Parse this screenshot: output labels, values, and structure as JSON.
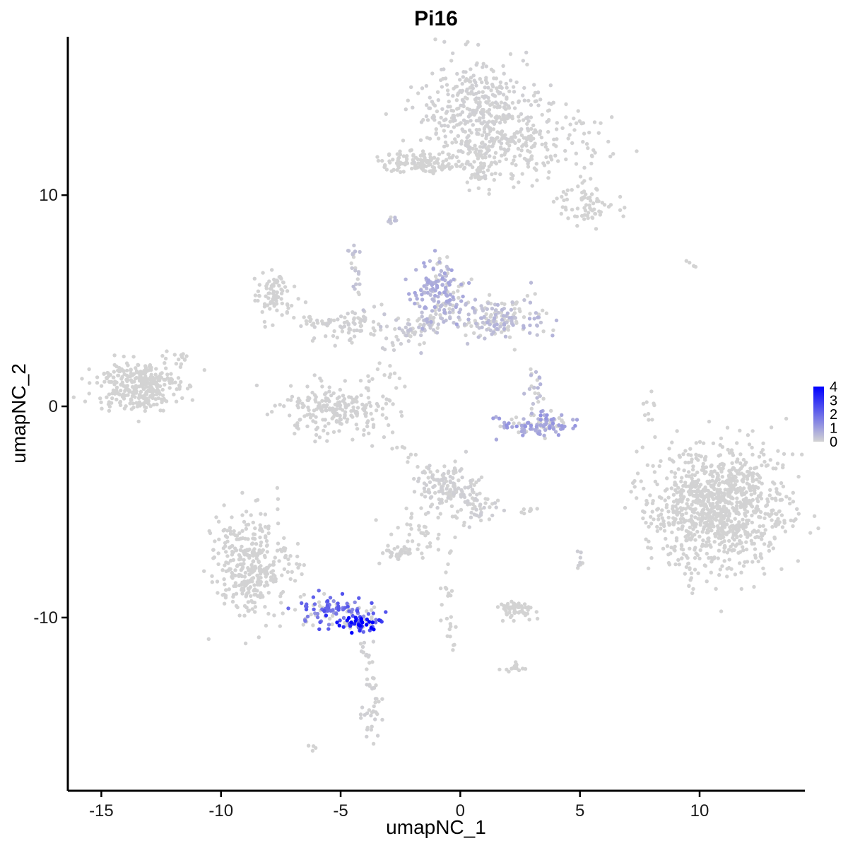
{
  "chart_data": {
    "type": "scatter",
    "title": "Pi16",
    "xlabel": "umapNC_1",
    "ylabel": "umapNC_2",
    "xlim": [
      -16.4,
      14.4
    ],
    "ylim": [
      -18.2,
      17.5
    ],
    "x_ticks": [
      -15,
      -10,
      -5,
      0,
      5,
      10
    ],
    "y_ticks": [
      -10,
      0,
      10
    ],
    "grid": false,
    "legend": {
      "placement": "right",
      "type": "colorbar",
      "min": 0,
      "max": 4,
      "ticks": [
        4,
        3,
        2,
        1,
        0
      ],
      "low_color": "#d3d3d3",
      "high_color": "#0000ff"
    },
    "point_color_low": "#d3d3d3",
    "point_color_high": "#0000ff",
    "clusters": [
      {
        "cx": 0.8,
        "cy": 14.0,
        "sx": 1.2,
        "sy": 1.2,
        "n": 380,
        "expr": 0.05
      },
      {
        "cx": 2.8,
        "cy": 12.3,
        "sx": 1.6,
        "sy": 0.8,
        "n": 200,
        "expr": 0.02
      },
      {
        "cx": 5.3,
        "cy": 9.6,
        "sx": 0.55,
        "sy": 0.45,
        "n": 70,
        "expr": 0
      },
      {
        "cx": -1.8,
        "cy": 11.6,
        "sx": 0.9,
        "sy": 0.3,
        "n": 110,
        "expr": 0
      },
      {
        "cx": 0.8,
        "cy": 11.4,
        "sx": 0.35,
        "sy": 0.7,
        "n": 40,
        "expr": 0
      },
      {
        "cx": -7.8,
        "cy": 5.3,
        "sx": 0.45,
        "sy": 0.55,
        "n": 80,
        "expr": 0.02
      },
      {
        "cx": -4.7,
        "cy": 3.8,
        "sx": 0.7,
        "sy": 0.35,
        "n": 70,
        "expr": 0.05
      },
      {
        "cx": -0.9,
        "cy": 5.4,
        "sx": 0.55,
        "sy": 0.7,
        "n": 150,
        "expr": 0.65
      },
      {
        "cx": 1.7,
        "cy": 4.2,
        "sx": 0.9,
        "sy": 0.5,
        "n": 160,
        "expr": 0.45
      },
      {
        "cx": -1.3,
        "cy": 3.7,
        "sx": 1.0,
        "sy": 0.4,
        "n": 60,
        "expr": 0.25
      },
      {
        "cx": -13.5,
        "cy": 1.0,
        "sx": 0.85,
        "sy": 0.6,
        "n": 320,
        "expr": 0
      },
      {
        "cx": -5.3,
        "cy": -0.2,
        "sx": 1.1,
        "sy": 0.6,
        "n": 220,
        "expr": 0.03
      },
      {
        "cx": 3.3,
        "cy": -0.9,
        "sx": 0.8,
        "sy": 0.25,
        "n": 110,
        "expr": 0.9
      },
      {
        "cx": 3.2,
        "cy": 0.6,
        "sx": 0.25,
        "sy": 0.6,
        "n": 25,
        "expr": 0.45
      },
      {
        "cx": 10.8,
        "cy": -4.8,
        "sx": 1.4,
        "sy": 1.45,
        "n": 1000,
        "expr": 0.01
      },
      {
        "cx": -0.6,
        "cy": -3.8,
        "sx": 0.6,
        "sy": 0.5,
        "n": 130,
        "expr": 0.06
      },
      {
        "cx": 0.8,
        "cy": -4.8,
        "sx": 0.4,
        "sy": 0.5,
        "n": 40,
        "expr": 0.1
      },
      {
        "cx": -1.7,
        "cy": -6.1,
        "sx": 0.6,
        "sy": 0.6,
        "n": 40,
        "expr": 0
      },
      {
        "cx": -8.7,
        "cy": -7.4,
        "sx": 0.8,
        "sy": 1.3,
        "n": 350,
        "expr": 0.02
      },
      {
        "cx": -5.3,
        "cy": -9.7,
        "sx": 0.85,
        "sy": 0.35,
        "n": 100,
        "expr": 1.8
      },
      {
        "cx": -4.3,
        "cy": -10.3,
        "sx": 0.45,
        "sy": 0.2,
        "n": 60,
        "expr": 3.2
      },
      {
        "cx": -2.6,
        "cy": -6.9,
        "sx": 0.35,
        "sy": 0.2,
        "n": 30,
        "expr": 0.03
      },
      {
        "cx": 2.3,
        "cy": -9.6,
        "sx": 0.4,
        "sy": 0.2,
        "n": 60,
        "expr": 0
      },
      {
        "cx": 2.2,
        "cy": -12.4,
        "sx": 0.2,
        "sy": 0.15,
        "n": 15,
        "expr": 0
      },
      {
        "cx": -3.7,
        "cy": -14.5,
        "sx": 0.25,
        "sy": 0.6,
        "n": 30,
        "expr": 0.05
      },
      {
        "cx": -6.1,
        "cy": -16.2,
        "sx": 0.1,
        "sy": 0.1,
        "n": 4,
        "expr": 0
      },
      {
        "cx": 9.6,
        "cy": 6.7,
        "sx": 0.15,
        "sy": 0.1,
        "n": 4,
        "expr": 0
      },
      {
        "cx": 7.9,
        "cy": -0.1,
        "sx": 0.15,
        "sy": 0.6,
        "n": 10,
        "expr": 0
      },
      {
        "cx": 5.0,
        "cy": -7.3,
        "sx": 0.1,
        "sy": 0.3,
        "n": 8,
        "expr": 0.1
      },
      {
        "cx": 2.9,
        "cy": -4.9,
        "sx": 0.2,
        "sy": 0.08,
        "n": 8,
        "expr": 0
      },
      {
        "cx": -11.8,
        "cy": 2.3,
        "sx": 0.3,
        "sy": 0.3,
        "n": 12,
        "expr": 0
      },
      {
        "cx": -2.8,
        "cy": 8.8,
        "sx": 0.1,
        "sy": 0.15,
        "n": 8,
        "expr": 0.3
      }
    ],
    "bridges": [
      {
        "from": [
          -3.3,
          2.5
        ],
        "to": [
          -0.6,
          4.6
        ],
        "n": 30,
        "expr": 0.1
      },
      {
        "from": [
          -4.6,
          7.5
        ],
        "to": [
          -3.8,
          3.5
        ],
        "n": 25,
        "expr": 0.3
      },
      {
        "from": [
          -0.1,
          -5.0
        ],
        "to": [
          -0.7,
          -9.0
        ],
        "n": 15,
        "expr": 0
      },
      {
        "from": [
          -0.6,
          -9.0
        ],
        "to": [
          -0.2,
          -11.5
        ],
        "n": 15,
        "expr": 0
      },
      {
        "from": [
          0.2,
          11.4
        ],
        "to": [
          -1.2,
          11.4
        ],
        "n": 15,
        "expr": 0
      },
      {
        "from": [
          -7.2,
          4.6
        ],
        "to": [
          -5.3,
          3.7
        ],
        "n": 15,
        "expr": 0
      },
      {
        "from": [
          -3.5,
          2.0
        ],
        "to": [
          -2.3,
          1.0
        ],
        "n": 10,
        "expr": 0
      },
      {
        "from": [
          -4.1,
          -10.8
        ],
        "to": [
          -3.7,
          -13.3
        ],
        "n": 20,
        "expr": 0.05
      },
      {
        "from": [
          -2.7,
          -1.8
        ],
        "to": [
          -1.3,
          -3.0
        ],
        "n": 12,
        "expr": 0
      }
    ]
  }
}
